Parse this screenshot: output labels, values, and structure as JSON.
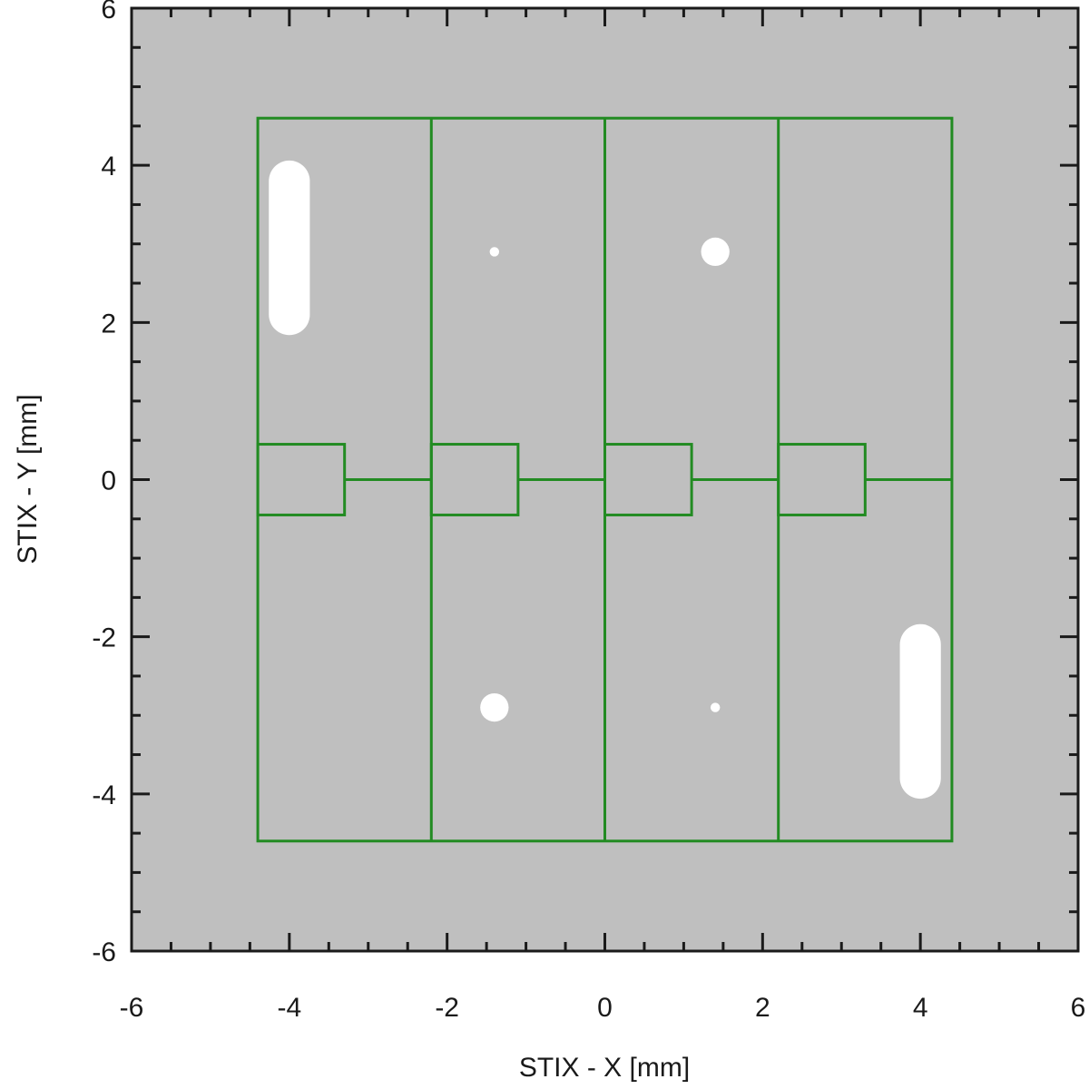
{
  "chart_data": {
    "type": "diagram",
    "title": "",
    "xlabel": "STIX - X [mm]",
    "ylabel": "STIX - Y [mm]",
    "xlim": [
      -6,
      6
    ],
    "ylim": [
      -6,
      6
    ],
    "major_ticks": [
      -6,
      -4,
      -2,
      0,
      2,
      4,
      6
    ],
    "minor_tick_step": 0.5,
    "tick_labels": [
      "-6",
      "-4",
      "-2",
      "0",
      "2",
      "4",
      "6"
    ],
    "colors": {
      "background": "#bfbfbf",
      "pixel_outline": "#228b22",
      "spot": "#ffffff",
      "axis": "#1a1a1a"
    },
    "detector": {
      "x": [
        -4.4,
        4.4
      ],
      "y": [
        -4.6,
        4.6
      ],
      "column_edges": [
        -4.4,
        -2.2,
        0,
        2.2,
        4.4
      ],
      "small_pixel": {
        "width": 1.1,
        "y": [
          -0.45,
          0.45
        ]
      },
      "midline_y": 0
    },
    "spots": [
      {
        "shape": "capsule",
        "x": -4.0,
        "y_range": [
          2.1,
          3.8
        ],
        "width": 0.52
      },
      {
        "shape": "circle",
        "x": -1.4,
        "y": 2.9,
        "r": 0.06
      },
      {
        "shape": "circle",
        "x": 1.4,
        "y": 2.9,
        "r": 0.18
      },
      {
        "shape": "circle",
        "x": -1.4,
        "y": -2.9,
        "r": 0.18
      },
      {
        "shape": "circle",
        "x": 1.4,
        "y": -2.9,
        "r": 0.06
      },
      {
        "shape": "capsule",
        "x": 4.0,
        "y_range": [
          -3.8,
          -2.1
        ],
        "width": 0.52
      }
    ]
  }
}
